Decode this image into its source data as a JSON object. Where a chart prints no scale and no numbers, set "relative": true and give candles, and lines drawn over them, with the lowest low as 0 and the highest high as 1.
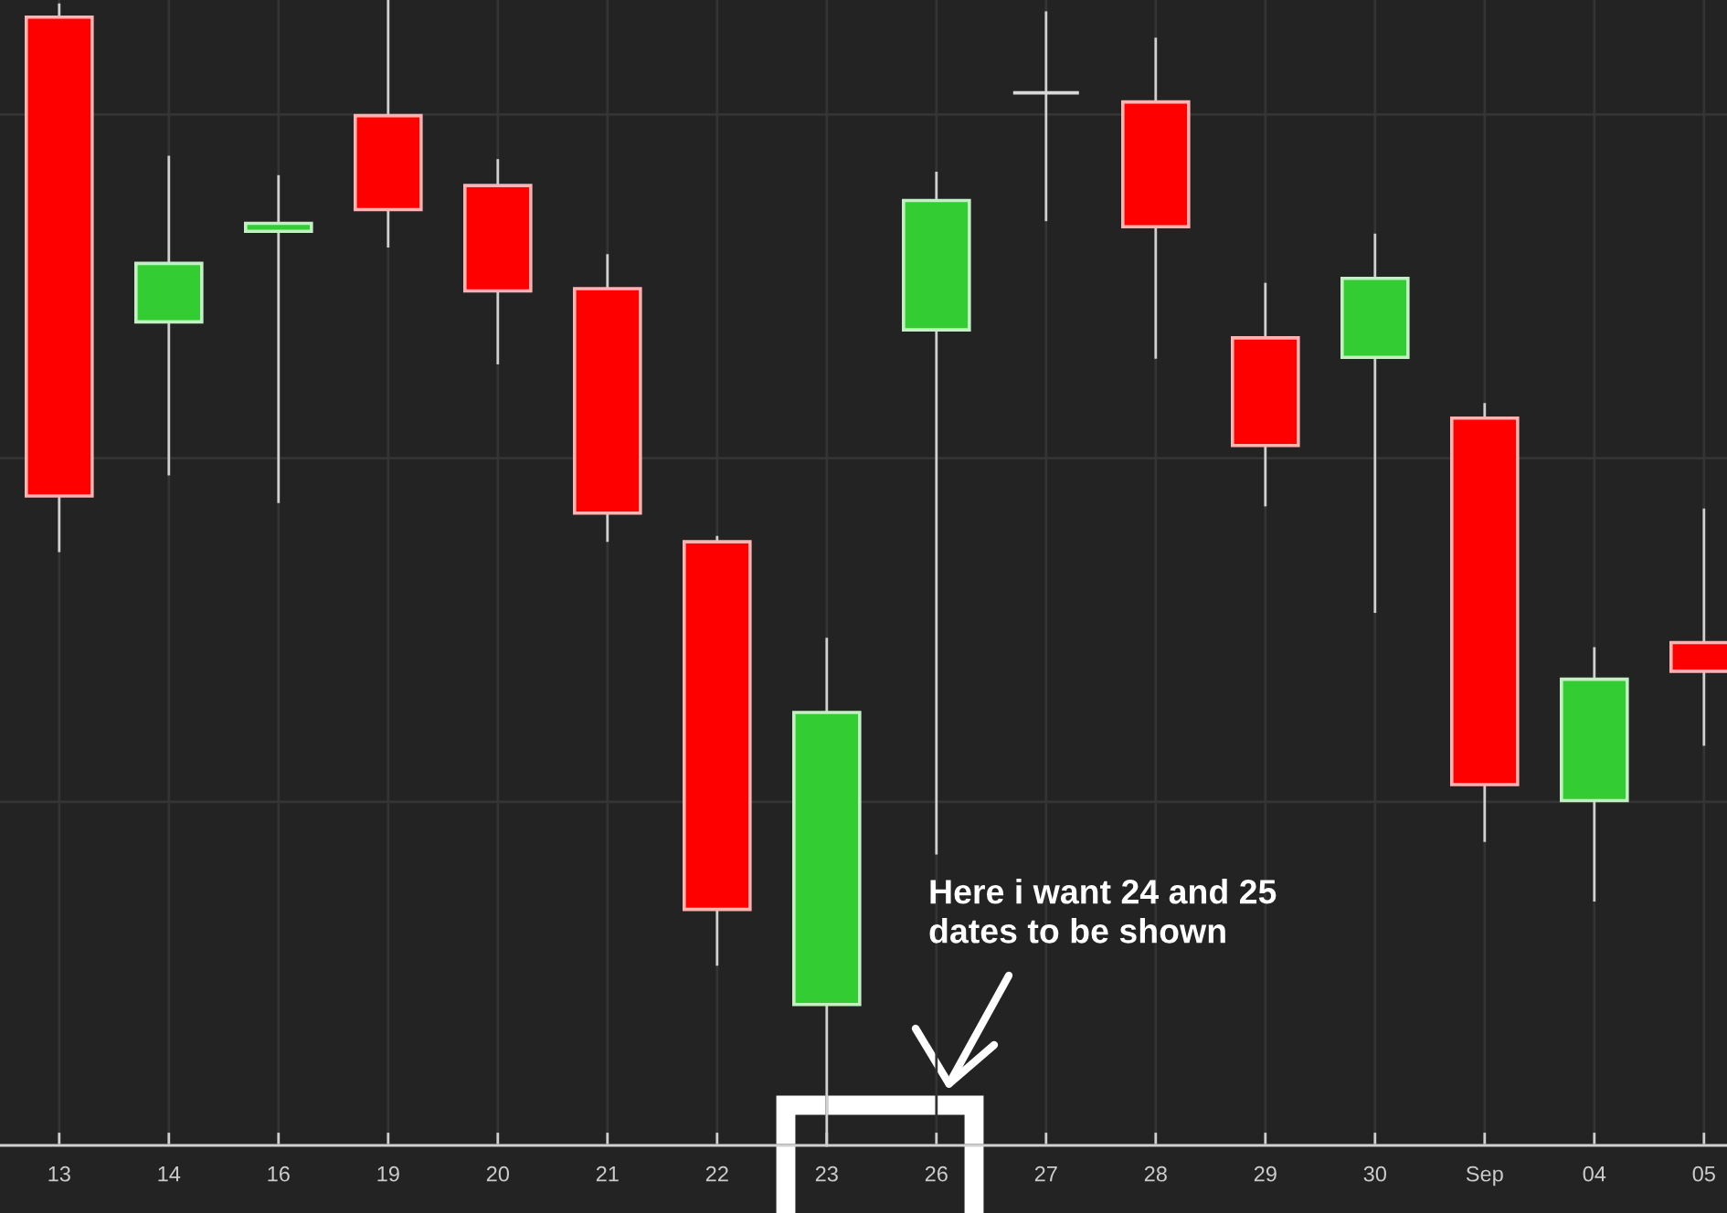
{
  "chart_data": {
    "type": "candlestick",
    "relative": true,
    "grid": true,
    "tick_labels": "x",
    "categories": [
      "13",
      "14",
      "16",
      "19",
      "20",
      "21",
      "22",
      "23",
      "26",
      "27",
      "28",
      "29",
      "30",
      "Sep",
      "04",
      "05"
    ],
    "ohlc": [
      [
        0.985,
        0.996,
        0.519,
        0.567
      ],
      [
        0.719,
        0.863,
        0.586,
        0.77
      ],
      [
        0.798,
        0.846,
        0.562,
        0.805
      ],
      [
        0.899,
        1,
        0.785,
        0.817
      ],
      [
        0.838,
        0.86,
        0.683,
        0.746
      ],
      [
        0.748,
        0.777,
        0.528,
        0.552
      ],
      [
        0.527,
        0.531,
        0.158,
        0.206
      ],
      [
        0.123,
        0.442,
        0,
        0.378
      ],
      [
        0.712,
        0.849,
        0.255,
        0.825
      ],
      [
        0.919,
        0.989,
        0.808,
        0.919
      ],
      [
        0.911,
        0.966,
        0.688,
        0.802
      ],
      [
        0.705,
        0.752,
        0.559,
        0.611
      ],
      [
        0.688,
        0.795,
        0.466,
        0.757
      ],
      [
        0.635,
        0.647,
        0.266,
        0.315
      ],
      [
        0.301,
        0.434,
        0.214,
        0.407
      ],
      [
        0.439,
        0.555,
        0.35,
        0.414
      ]
    ],
    "colors": [
      "#ff0000",
      "#33cc33",
      "#33cc33",
      "#ff0000",
      "#ff0000",
      "#ff0000",
      "#ff0000",
      "#33cc33",
      "#33cc33",
      "#d9d9d9",
      "#ff0000",
      "#ff0000",
      "#33cc33",
      "#ff0000",
      "#33cc33",
      "#ff0000"
    ],
    "annotations": [
      "Here i want 24 and 25\ndates to be shown"
    ]
  }
}
